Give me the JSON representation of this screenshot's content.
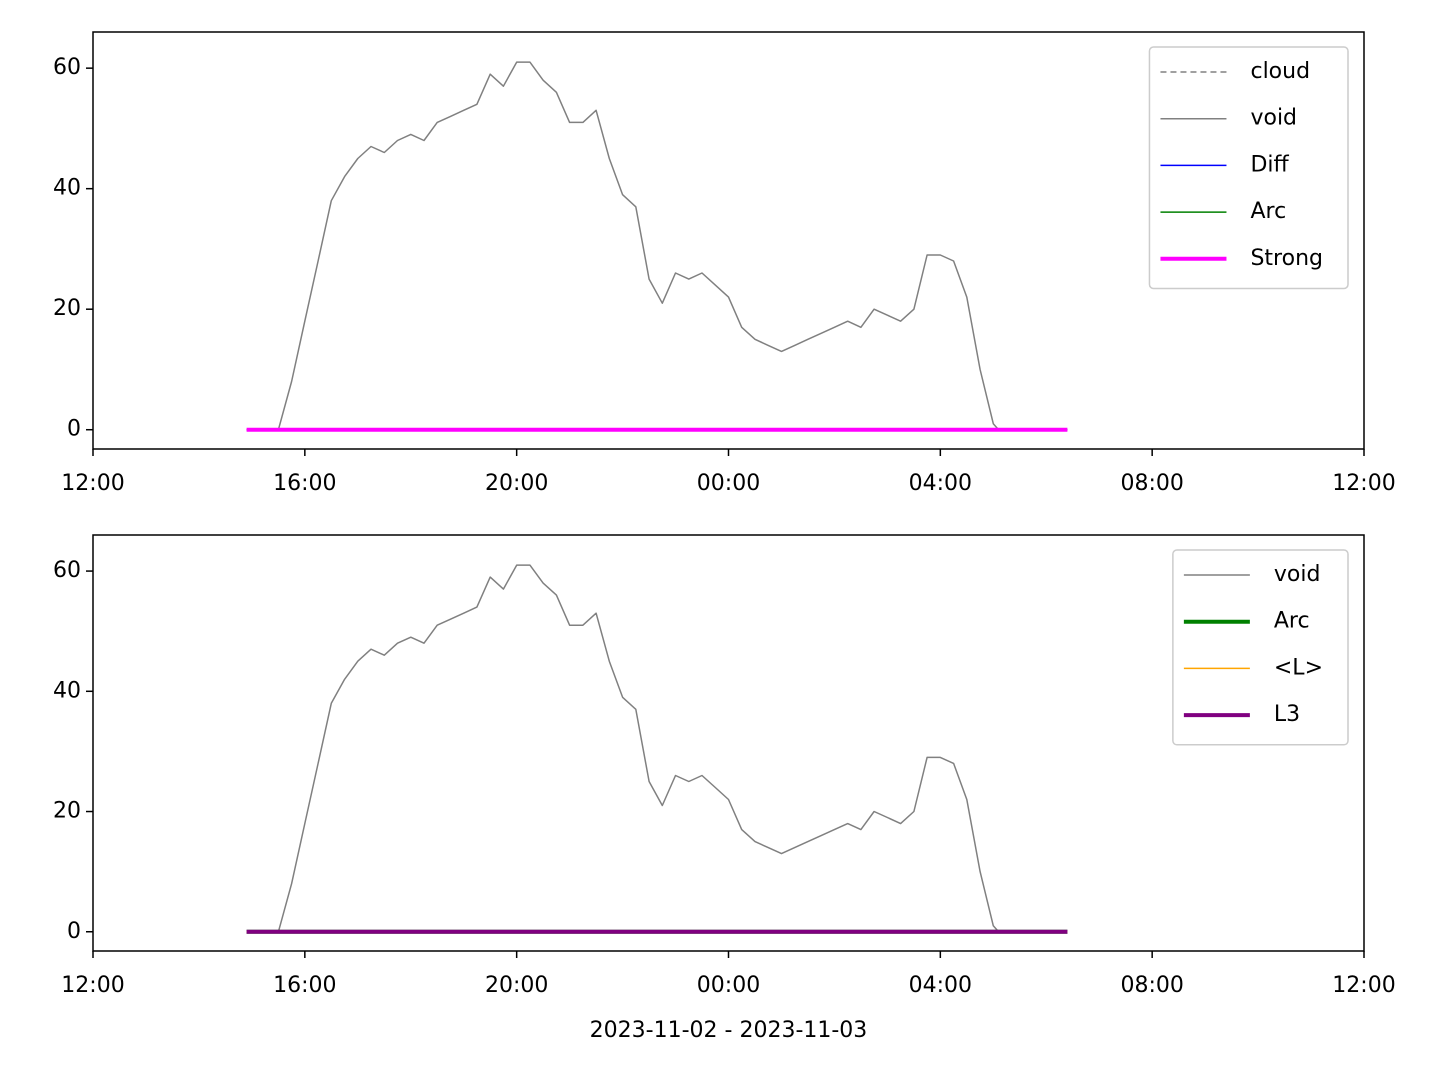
{
  "chart_data": [
    {
      "type": "line",
      "xlim": [
        0,
        24
      ],
      "xticks": [
        {
          "value": 0,
          "label": "12:00"
        },
        {
          "value": 4,
          "label": "16:00"
        },
        {
          "value": 8,
          "label": "20:00"
        },
        {
          "value": 12,
          "label": "00:00"
        },
        {
          "value": 16,
          "label": "04:00"
        },
        {
          "value": 20,
          "label": "08:00"
        },
        {
          "value": 24,
          "label": "12:00"
        }
      ],
      "ylim": [
        -3.2,
        66
      ],
      "yticks": [
        0,
        20,
        40,
        60
      ],
      "legend": "upper right",
      "series": [
        {
          "name": "cloud",
          "color": "#808080",
          "linestyle": "dashed",
          "linewidth": 1.5,
          "x": [
            2.9,
            18.4
          ],
          "values": [
            0,
            0
          ]
        },
        {
          "name": "void",
          "color": "#808080",
          "linestyle": "solid",
          "linewidth": 1.5,
          "x": [
            3.5,
            3.75,
            4.0,
            4.25,
            4.5,
            4.75,
            5.0,
            5.25,
            5.5,
            5.75,
            6.0,
            6.25,
            6.5,
            6.75,
            7.0,
            7.25,
            7.5,
            7.75,
            8.0,
            8.25,
            8.5,
            8.75,
            9.0,
            9.25,
            9.5,
            9.75,
            10.0,
            10.25,
            10.5,
            10.75,
            11.0,
            11.25,
            11.5,
            11.75,
            12.0,
            12.25,
            12.5,
            12.75,
            13.0,
            13.25,
            13.5,
            13.75,
            14.0,
            14.25,
            14.5,
            14.75,
            15.0,
            15.25,
            15.5,
            15.75,
            16.0,
            16.25,
            16.5,
            16.75,
            17.0,
            17.1
          ],
          "values": [
            0,
            8,
            18,
            28,
            38,
            42,
            45,
            47,
            46,
            48,
            49,
            48,
            51,
            52,
            53,
            54,
            59,
            57,
            61,
            61,
            58,
            56,
            51,
            51,
            53,
            45,
            39,
            37,
            25,
            21,
            26,
            25,
            26,
            24,
            22,
            17,
            15,
            14,
            13,
            14,
            15,
            16,
            17,
            18,
            17,
            20,
            19,
            18,
            20,
            29,
            29,
            28,
            22,
            10,
            1,
            0
          ]
        },
        {
          "name": "Diff",
          "color": "#0000ff",
          "linestyle": "solid",
          "linewidth": 1.5,
          "x": [
            2.9,
            18.4
          ],
          "values": [
            0,
            0
          ]
        },
        {
          "name": "Arc",
          "color": "#008000",
          "linestyle": "solid",
          "linewidth": 1.5,
          "x": [
            2.9,
            18.4
          ],
          "values": [
            0,
            0
          ]
        },
        {
          "name": "Strong",
          "color": "#ff00ff",
          "linestyle": "solid",
          "linewidth": 4,
          "x": [
            2.9,
            18.4
          ],
          "values": [
            0,
            0
          ]
        }
      ]
    },
    {
      "type": "line",
      "xlabel": "2023-11-02 - 2023-11-03",
      "xlim": [
        0,
        24
      ],
      "xticks": [
        {
          "value": 0,
          "label": "12:00"
        },
        {
          "value": 4,
          "label": "16:00"
        },
        {
          "value": 8,
          "label": "20:00"
        },
        {
          "value": 12,
          "label": "00:00"
        },
        {
          "value": 16,
          "label": "04:00"
        },
        {
          "value": 20,
          "label": "08:00"
        },
        {
          "value": 24,
          "label": "12:00"
        }
      ],
      "ylim": [
        -3.2,
        66
      ],
      "yticks": [
        0,
        20,
        40,
        60
      ],
      "legend": "upper right",
      "series": [
        {
          "name": "void",
          "color": "#808080",
          "linestyle": "solid",
          "linewidth": 1.5,
          "x": [
            3.5,
            3.75,
            4.0,
            4.25,
            4.5,
            4.75,
            5.0,
            5.25,
            5.5,
            5.75,
            6.0,
            6.25,
            6.5,
            6.75,
            7.0,
            7.25,
            7.5,
            7.75,
            8.0,
            8.25,
            8.5,
            8.75,
            9.0,
            9.25,
            9.5,
            9.75,
            10.0,
            10.25,
            10.5,
            10.75,
            11.0,
            11.25,
            11.5,
            11.75,
            12.0,
            12.25,
            12.5,
            12.75,
            13.0,
            13.25,
            13.5,
            13.75,
            14.0,
            14.25,
            14.5,
            14.75,
            15.0,
            15.25,
            15.5,
            15.75,
            16.0,
            16.25,
            16.5,
            16.75,
            17.0,
            17.1
          ],
          "values": [
            0,
            8,
            18,
            28,
            38,
            42,
            45,
            47,
            46,
            48,
            49,
            48,
            51,
            52,
            53,
            54,
            59,
            57,
            61,
            61,
            58,
            56,
            51,
            51,
            53,
            45,
            39,
            37,
            25,
            21,
            26,
            25,
            26,
            24,
            22,
            17,
            15,
            14,
            13,
            14,
            15,
            16,
            17,
            18,
            17,
            20,
            19,
            18,
            20,
            29,
            29,
            28,
            22,
            10,
            1,
            0
          ]
        },
        {
          "name": "Arc",
          "color": "#008000",
          "linestyle": "solid",
          "linewidth": 4,
          "x": [
            2.9,
            18.4
          ],
          "values": [
            0,
            0
          ]
        },
        {
          "name": "<L>",
          "color": "#ffa500",
          "linestyle": "solid",
          "linewidth": 1.5,
          "x": [
            2.9,
            18.4
          ],
          "values": [
            0,
            0
          ]
        },
        {
          "name": "L3",
          "color": "#800080",
          "linestyle": "solid",
          "linewidth": 4,
          "x": [
            2.9,
            18.4
          ],
          "values": [
            0,
            0
          ]
        }
      ]
    }
  ]
}
